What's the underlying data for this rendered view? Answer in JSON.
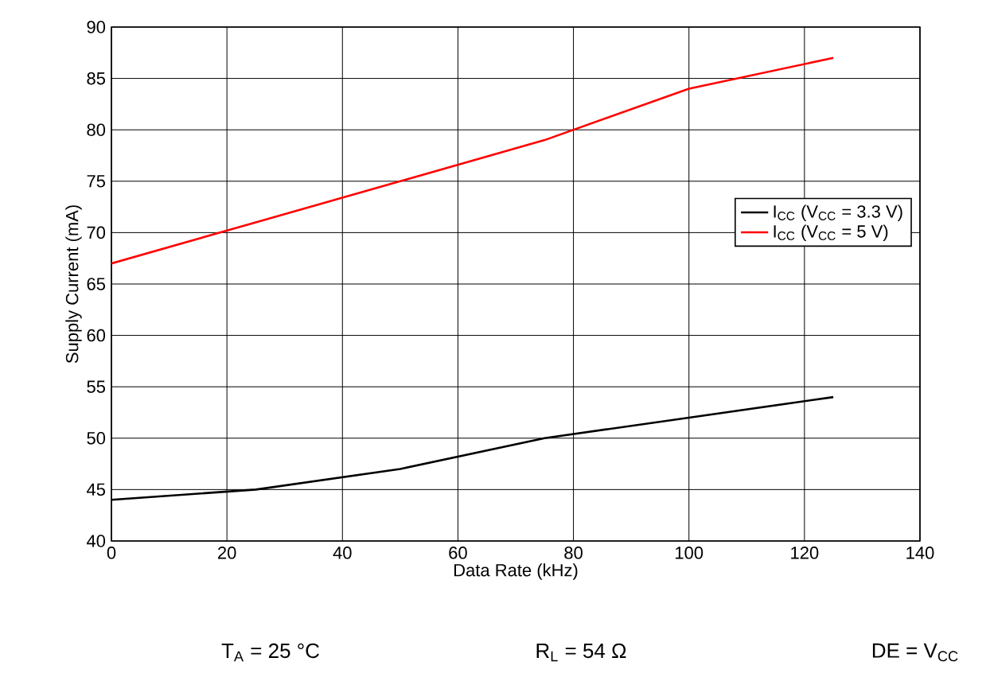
{
  "chart_data": {
    "type": "line",
    "xlabel": "Data Rate (kHz)",
    "ylabel": "Supply Current (mA)",
    "x": [
      0,
      25,
      50,
      75,
      100,
      125
    ],
    "series": [
      {
        "name": "I$_{CC}$ (V$_{CC}$ = 3.3 V)",
        "color": "#000000",
        "values": [
          44,
          45,
          47,
          50,
          52,
          54
        ]
      },
      {
        "name": "I$_{CC}$ (V$_{CC}$ = 5 V)",
        "color": "#ff0000",
        "values": [
          67,
          71,
          75,
          79,
          84,
          87
        ]
      }
    ],
    "xlim": [
      0,
      140
    ],
    "xticks": [
      0,
      20,
      40,
      60,
      80,
      100,
      120,
      140
    ],
    "ylim": [
      40,
      90
    ],
    "yticks": [
      40,
      45,
      50,
      55,
      60,
      65,
      70,
      75,
      80,
      85,
      90
    ],
    "grid": true,
    "legend": "right",
    "marker": "none",
    "line_style": "solid",
    "annotations": [
      "T$_{A}$ = 25 °C",
      "R$_{L}$ = 54 Ω",
      "DE = V$_{CC}$"
    ]
  }
}
